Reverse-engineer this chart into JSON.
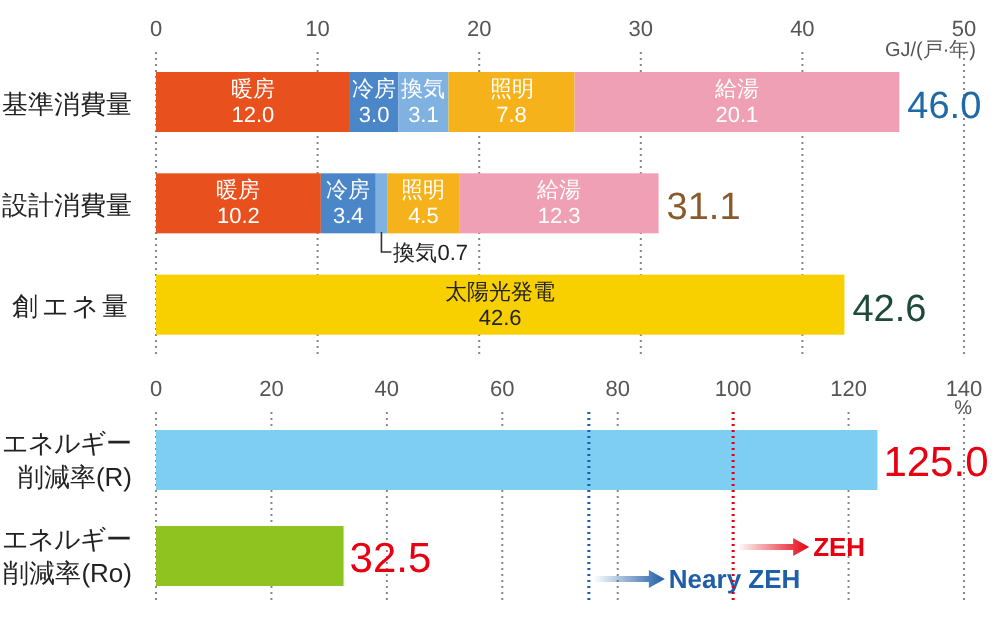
{
  "chart_data": [
    {
      "type": "bar",
      "orientation": "horizontal",
      "stacked": true,
      "categories": [
        "基準消費量",
        "設計消費量",
        "創エネ量"
      ],
      "xlabel": "GJ/(戸·年)",
      "xlim": [
        0,
        50
      ],
      "xticks": [
        0,
        10,
        20,
        30,
        40,
        50
      ],
      "grid": "x",
      "series": [
        {
          "name": "暖房",
          "color": "#e8501e",
          "values": [
            12.0,
            10.2,
            null
          ],
          "value_labels": [
            "12.0",
            "10.2",
            null
          ]
        },
        {
          "name": "冷房",
          "color": "#4a86c8",
          "values": [
            3.0,
            3.4,
            null
          ],
          "value_labels": [
            "3.0",
            "3.4",
            null
          ]
        },
        {
          "name": "換気",
          "color": "#7fb2e0",
          "values": [
            3.1,
            0.7,
            null
          ],
          "value_labels": [
            "3.1",
            null,
            null
          ]
        },
        {
          "name": "照明",
          "color": "#f5b21a",
          "values": [
            7.8,
            4.5,
            null
          ],
          "value_labels": [
            "7.8",
            "4.5",
            null
          ]
        },
        {
          "name": "給湯",
          "color": "#f0a0b4",
          "values": [
            20.1,
            12.3,
            null
          ],
          "value_labels": [
            "20.1",
            "12.3",
            null
          ]
        },
        {
          "name": "太陽光発電",
          "color": "#f8d000",
          "values": [
            null,
            null,
            42.6
          ],
          "value_labels": [
            null,
            null,
            "42.6"
          ]
        }
      ],
      "totals": [
        "46.0",
        "31.1",
        "42.6"
      ],
      "annotations": [
        {
          "text": "換気0.7",
          "x": 13.95,
          "y": "設計消費量"
        }
      ]
    },
    {
      "type": "bar",
      "orientation": "horizontal",
      "categories": [
        "エネルギー削減率(R)",
        "エネルギー削減率(Ro)"
      ],
      "values": [
        125.0,
        32.5
      ],
      "colors": [
        "#7ecef4",
        "#8fc31f"
      ],
      "value_labels": [
        "125.0",
        "32.5"
      ],
      "xlabel": "%",
      "xlim": [
        0,
        140
      ],
      "xticks": [
        0,
        20,
        40,
        60,
        80,
        100,
        120,
        140
      ],
      "grid": "x",
      "ref_lines": [
        {
          "axis": "x",
          "value": 75,
          "label": "Neary ZEH",
          "color": "#1f5ea8"
        },
        {
          "axis": "x",
          "value": 100,
          "label": "ZEH",
          "color": "#e60012"
        }
      ]
    }
  ]
}
